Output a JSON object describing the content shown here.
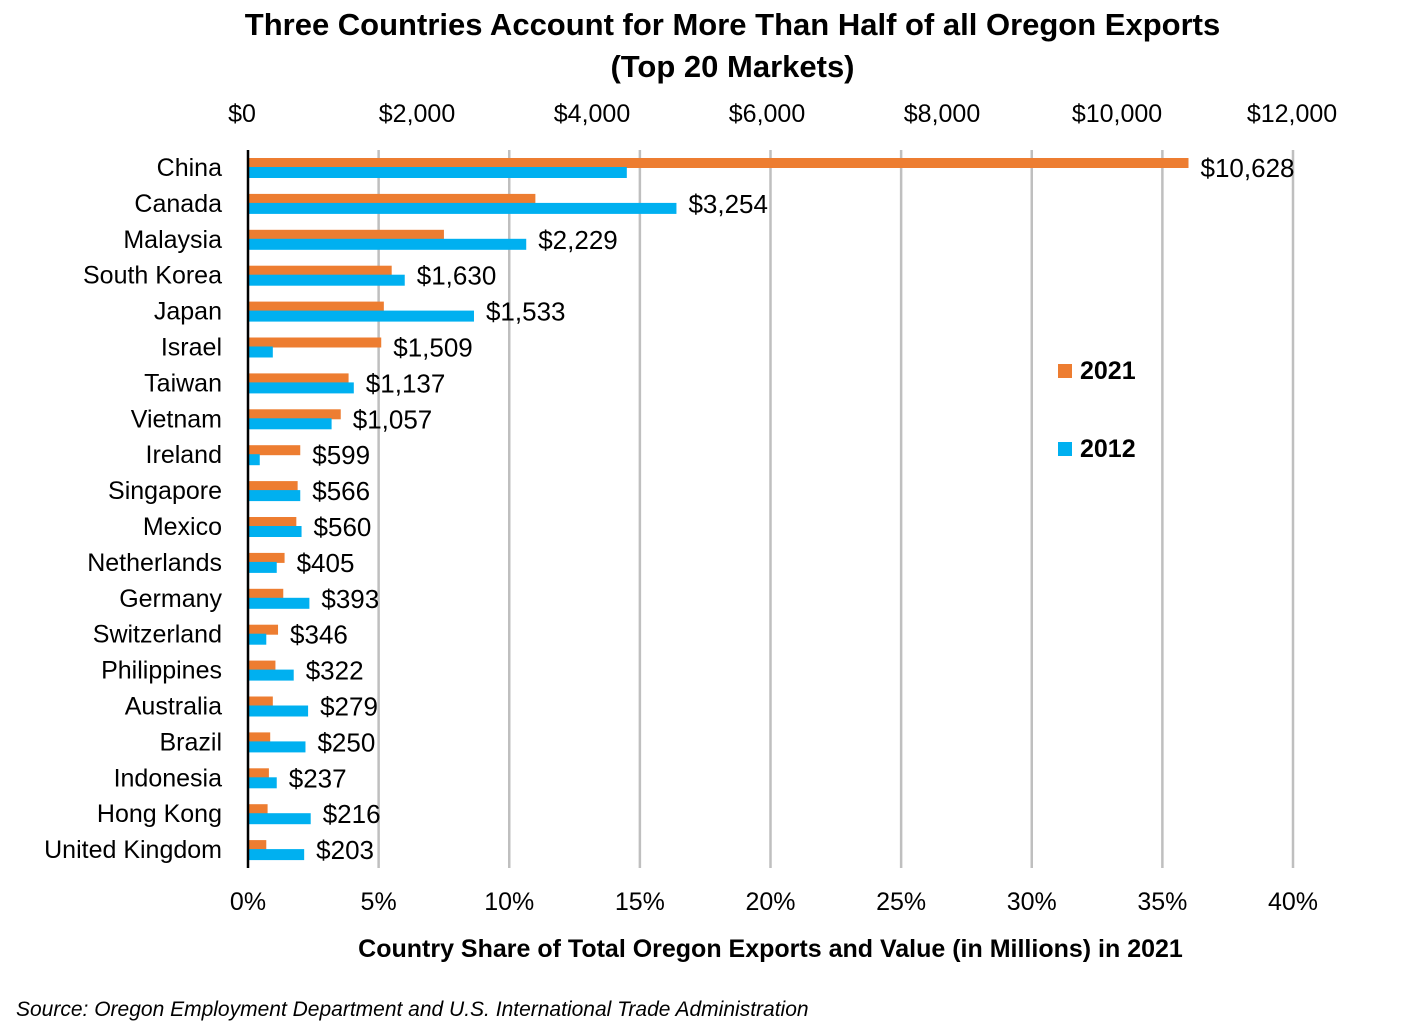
{
  "title_line1": "Three Countries Account for More Than Half of all Oregon Exports",
  "title_line2": "(Top 20 Markets)",
  "source": "Source: Oregon Employment Department and U.S. International Trade Administration",
  "colors": {
    "2021": "#ED7D31",
    "2012": "#00B0F0",
    "grid": "#BFBFBF",
    "axis": "#000000"
  },
  "chart_data": {
    "type": "bar",
    "orientation": "horizontal",
    "title": "Three Countries Account for More Than Half of all Oregon Exports (Top 20 Markets)",
    "xlabel": "Country Share of Total Oregon Exports and Value (in Millions) in 2021",
    "ylabel": "",
    "xlim_percent": [
      0,
      40
    ],
    "x_ticks_percent": [
      "0%",
      "5%",
      "10%",
      "15%",
      "20%",
      "25%",
      "30%",
      "35%",
      "40%"
    ],
    "xlim_top_dollars": [
      0,
      12000
    ],
    "x_ticks_top": [
      "$0",
      "$2,000",
      "$4,000",
      "$6,000",
      "$8,000",
      "$10,000",
      "$12,000"
    ],
    "grid": true,
    "legend_position": "right",
    "categories": [
      "China",
      "Canada",
      "Malaysia",
      "South Korea",
      "Japan",
      "Israel",
      "Taiwan",
      "Vietnam",
      "Ireland",
      "Singapore",
      "Mexico",
      "Netherlands",
      "Germany",
      "Switzerland",
      "Philippines",
      "Australia",
      "Brazil",
      "Indonesia",
      "Hong Kong",
      "United Kingdom"
    ],
    "series": [
      {
        "name": "2021",
        "values": [
          36.0,
          11.0,
          7.5,
          5.5,
          5.2,
          5.1,
          3.85,
          3.55,
          2.0,
          1.9,
          1.85,
          1.4,
          1.35,
          1.15,
          1.05,
          0.95,
          0.85,
          0.8,
          0.75,
          0.7
        ]
      },
      {
        "name": "2012",
        "values": [
          14.5,
          16.4,
          10.65,
          6.0,
          8.65,
          0.95,
          4.05,
          3.2,
          0.45,
          2.0,
          2.05,
          1.1,
          2.35,
          0.7,
          1.75,
          2.3,
          2.2,
          1.1,
          2.4,
          2.15
        ]
      }
    ],
    "data_labels": [
      "$10,628",
      "$3,254",
      "$2,229",
      "$1,630",
      "$1,533",
      "$1,509",
      "$1,137",
      "$1,057",
      "$599",
      "$566",
      "$560",
      "$405",
      "$393",
      "$346",
      "$322",
      "$279",
      "$250",
      "$237",
      "$216",
      "$203"
    ]
  }
}
